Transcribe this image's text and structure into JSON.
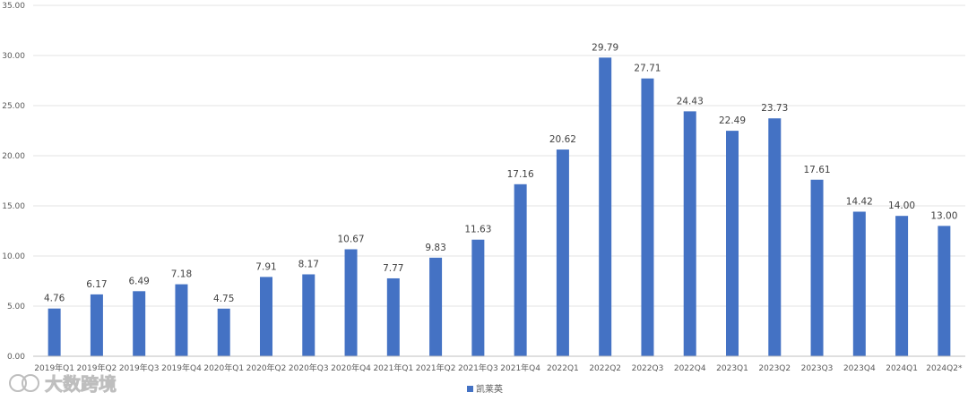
{
  "chart_data": {
    "type": "bar",
    "categories": [
      "2019年Q1",
      "2019年Q2",
      "2019年Q3",
      "2019年Q4",
      "2020年Q1",
      "2020年Q2",
      "2020年Q3",
      "2020年Q4",
      "2021年Q1",
      "2021年Q2",
      "2021年Q3",
      "2021年Q4",
      "2022Q1",
      "2022Q2",
      "2022Q3",
      "2022Q4",
      "2023Q1",
      "2023Q2",
      "2023Q3",
      "2023Q4",
      "2024Q1",
      "2024Q2*"
    ],
    "series": [
      {
        "name": "凯莱英",
        "values": [
          4.76,
          6.17,
          6.49,
          7.18,
          4.75,
          7.91,
          8.17,
          10.67,
          7.77,
          9.83,
          11.63,
          17.16,
          20.62,
          29.79,
          27.71,
          24.43,
          22.49,
          23.73,
          17.61,
          14.42,
          14.0,
          13.0
        ]
      }
    ],
    "data_labels": [
      "4.76",
      "6.17",
      "6.49",
      "7.18",
      "4.75",
      "7.91",
      "8.17",
      "10.67",
      "7.77",
      "9.83",
      "11.63",
      "17.16",
      "20.62",
      "29.79",
      "27.71",
      "24.43",
      "22.49",
      "23.73",
      "17.61",
      "14.42",
      "14.00",
      "13.00"
    ],
    "y_ticks": [
      "0.00",
      "5.00",
      "10.00",
      "15.00",
      "20.00",
      "25.00",
      "30.00",
      "35.00"
    ],
    "ylim": [
      0,
      35
    ],
    "grid": true,
    "legend_position": "bottom-center",
    "bar_color": "#4472c4",
    "watermark": "大数跨境"
  }
}
